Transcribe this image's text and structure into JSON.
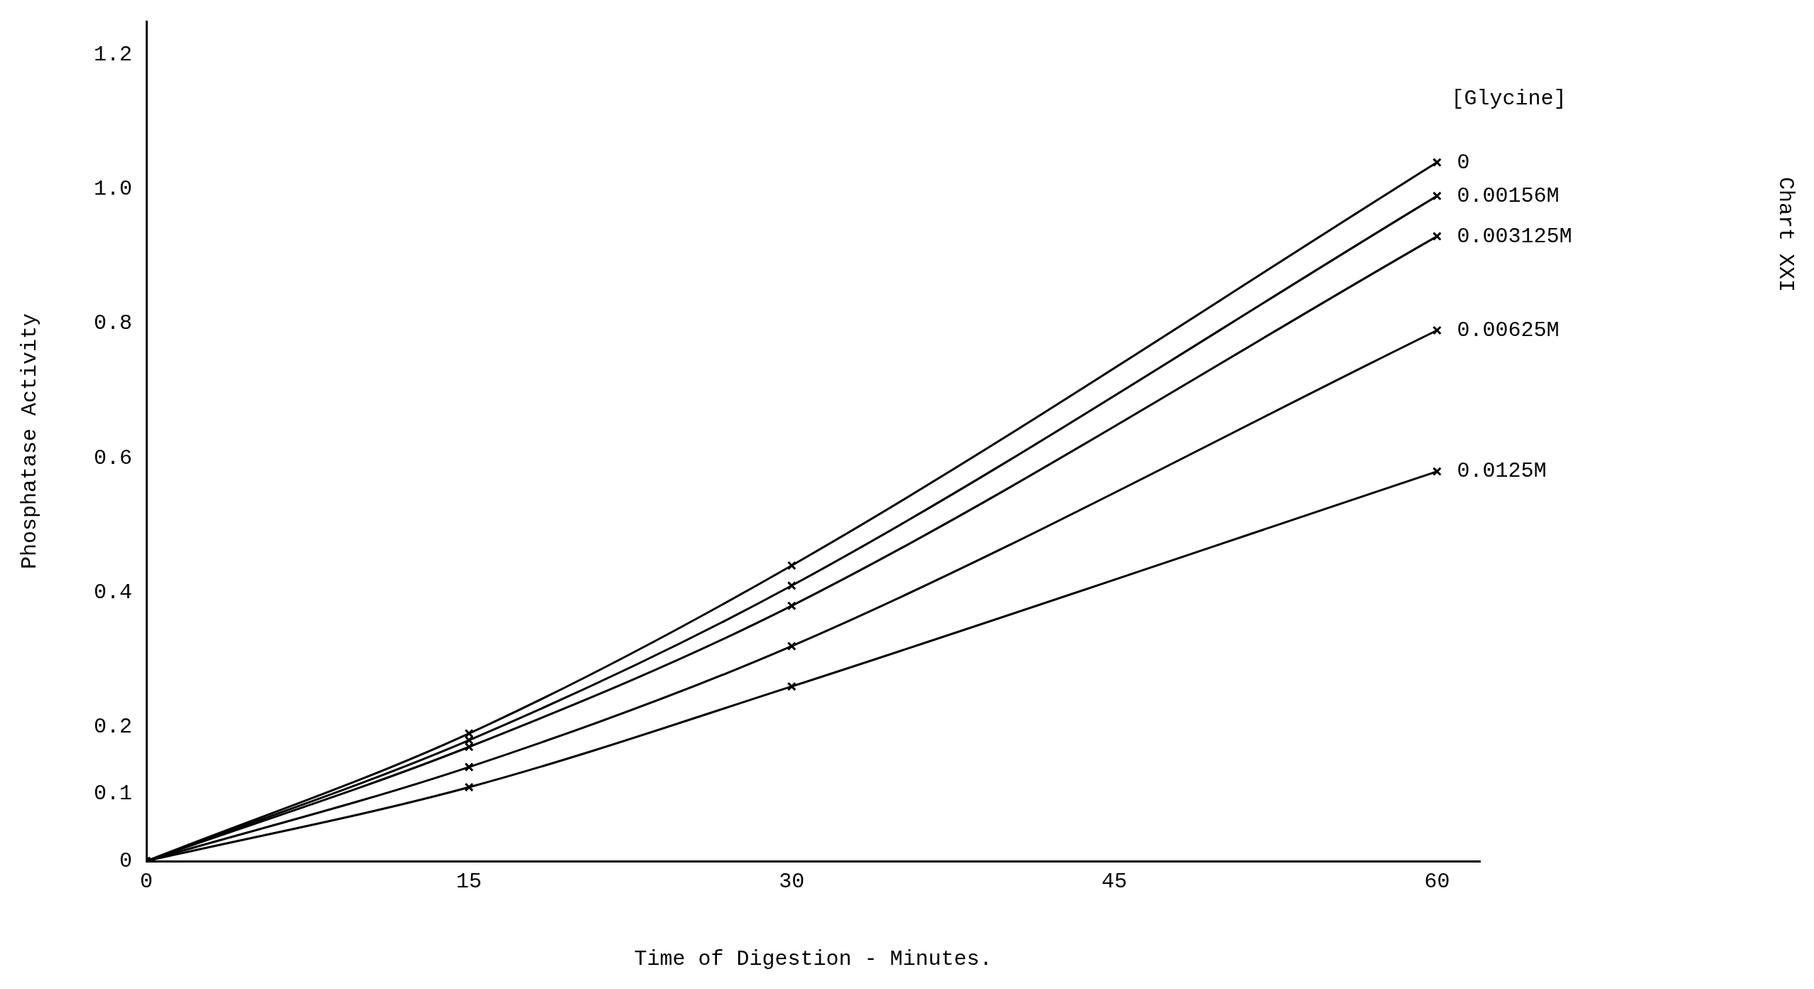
{
  "chart_data": {
    "type": "line",
    "xlabel": "Time of Digestion - Minutes.",
    "ylabel": "Phosphatase Activity",
    "legend_title": "[Glycine]",
    "annotations": [
      "Chart XXI"
    ],
    "x": [
      0,
      15,
      30,
      60
    ],
    "series": [
      {
        "name": "0",
        "color": "#000000",
        "values": [
          0,
          0.19,
          0.44,
          1.04
        ]
      },
      {
        "name": "0.00156M",
        "color": "#000000",
        "values": [
          0,
          0.18,
          0.41,
          0.99
        ]
      },
      {
        "name": "0.003125M",
        "color": "#000000",
        "values": [
          0,
          0.17,
          0.38,
          0.93
        ]
      },
      {
        "name": "0.00625M",
        "color": "#000000",
        "values": [
          0,
          0.14,
          0.32,
          0.79
        ]
      },
      {
        "name": "0.0125M",
        "color": "#000000",
        "values": [
          0,
          0.11,
          0.26,
          0.58
        ]
      }
    ],
    "xlim": [
      0,
      62
    ],
    "xticks": [
      0,
      15,
      30,
      45,
      60
    ],
    "ylim": [
      0,
      1.25
    ],
    "yticks": [
      0,
      0.1,
      0.2,
      0.4,
      0.6,
      0.8,
      {
        "value": 1,
        "label": "1.0"
      },
      1.2
    ],
    "grid": false,
    "legend": false,
    "marker": "cross",
    "line_style": "solid"
  }
}
